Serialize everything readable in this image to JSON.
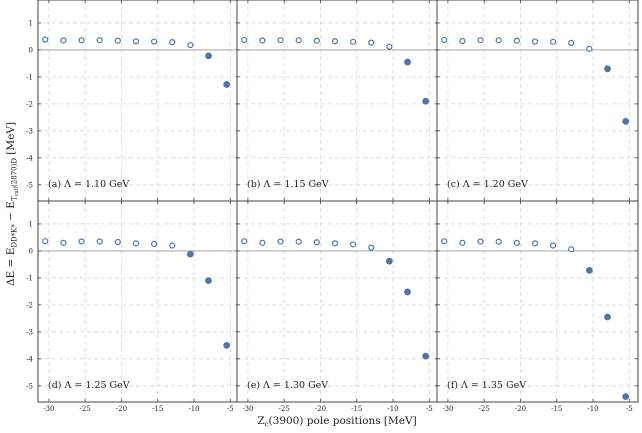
{
  "chart_data": {
    "type": "scatter",
    "title": "",
    "xlabel": "Z_c(3900) pole positions [MeV]",
    "ylabel": "ΔE = E_{DD*K*} − E_{T_cs0(2870)D} [MeV]",
    "xlim": [
      -31.5,
      -3.8
    ],
    "ylim": [
      -5.6,
      1.85
    ],
    "x_ticks": [
      "-30",
      "-25",
      "-20",
      "-15",
      "-10",
      "-5"
    ],
    "y_ticks": [
      "-5",
      "-4",
      "-3",
      "-2",
      "-1",
      "0",
      "1"
    ],
    "zero_line": true,
    "grid": true,
    "legend_note": "open circles: ΔE > 0, filled circles: ΔE < 0",
    "panels": [
      {
        "label": "(a) Λ = 1.10 GeV",
        "x": [
          -30.5,
          -28,
          -25.5,
          -23,
          -20.5,
          -18,
          -15.5,
          -13,
          -10.5,
          -8,
          -5.5
        ],
        "y": [
          0.38,
          0.35,
          0.36,
          0.36,
          0.34,
          0.32,
          0.31,
          0.29,
          0.18,
          -0.22,
          -1.28
        ],
        "filled": [
          false,
          false,
          false,
          false,
          false,
          false,
          false,
          false,
          false,
          true,
          true
        ]
      },
      {
        "label": "(b) Λ = 1.15 GeV",
        "x": [
          -30.5,
          -28,
          -25.5,
          -23,
          -20.5,
          -18,
          -15.5,
          -13,
          -10.5,
          -8,
          -5.5
        ],
        "y": [
          0.37,
          0.35,
          0.36,
          0.36,
          0.34,
          0.32,
          0.3,
          0.27,
          0.12,
          -0.45,
          -1.9
        ],
        "filled": [
          false,
          false,
          false,
          false,
          false,
          false,
          false,
          false,
          false,
          true,
          true
        ]
      },
      {
        "label": "(c) Λ = 1.20 GeV",
        "x": [
          -30.5,
          -28,
          -25.5,
          -23,
          -20.5,
          -18,
          -15.5,
          -13,
          -10.5,
          -8,
          -5.5
        ],
        "y": [
          0.37,
          0.33,
          0.36,
          0.36,
          0.34,
          0.31,
          0.3,
          0.26,
          0.04,
          -0.7,
          -2.65
        ],
        "filled": [
          false,
          false,
          false,
          false,
          false,
          false,
          false,
          false,
          false,
          true,
          true
        ]
      },
      {
        "label": "(d) Λ = 1.25 GeV",
        "x": [
          -30.5,
          -28,
          -25.5,
          -23,
          -20.5,
          -18,
          -15.5,
          -13,
          -10.5,
          -8,
          -5.5
        ],
        "y": [
          0.36,
          0.3,
          0.35,
          0.35,
          0.33,
          0.28,
          0.26,
          0.2,
          -0.12,
          -1.1,
          -3.5
        ],
        "filled": [
          false,
          false,
          false,
          false,
          false,
          false,
          false,
          false,
          true,
          true,
          true
        ]
      },
      {
        "label": "(e) Λ = 1.30 GeV",
        "x": [
          -30.5,
          -28,
          -25.5,
          -23,
          -20.5,
          -18,
          -15.5,
          -13,
          -10.5,
          -8,
          -5.5
        ],
        "y": [
          0.36,
          0.3,
          0.35,
          0.34,
          0.32,
          0.28,
          0.24,
          0.12,
          -0.38,
          -1.52,
          -3.9
        ],
        "filled": [
          false,
          false,
          false,
          false,
          false,
          false,
          false,
          false,
          true,
          true,
          true
        ]
      },
      {
        "label": "(f) Λ = 1.35 GeV",
        "x": [
          -30.5,
          -28,
          -25.5,
          -23,
          -20.5,
          -18,
          -15.5,
          -13,
          -10.5,
          -8,
          -5.5
        ],
        "y": [
          0.36,
          0.3,
          0.35,
          0.34,
          0.3,
          0.28,
          0.2,
          0.06,
          -0.72,
          -2.45,
          -5.4
        ],
        "filled": [
          false,
          false,
          false,
          false,
          false,
          false,
          false,
          false,
          true,
          true,
          true
        ]
      }
    ]
  },
  "colors": {
    "marker": "#4f74a8",
    "frame": "#444444",
    "grid": "#d6d6d6",
    "zero_line": "#9a9a9a"
  }
}
